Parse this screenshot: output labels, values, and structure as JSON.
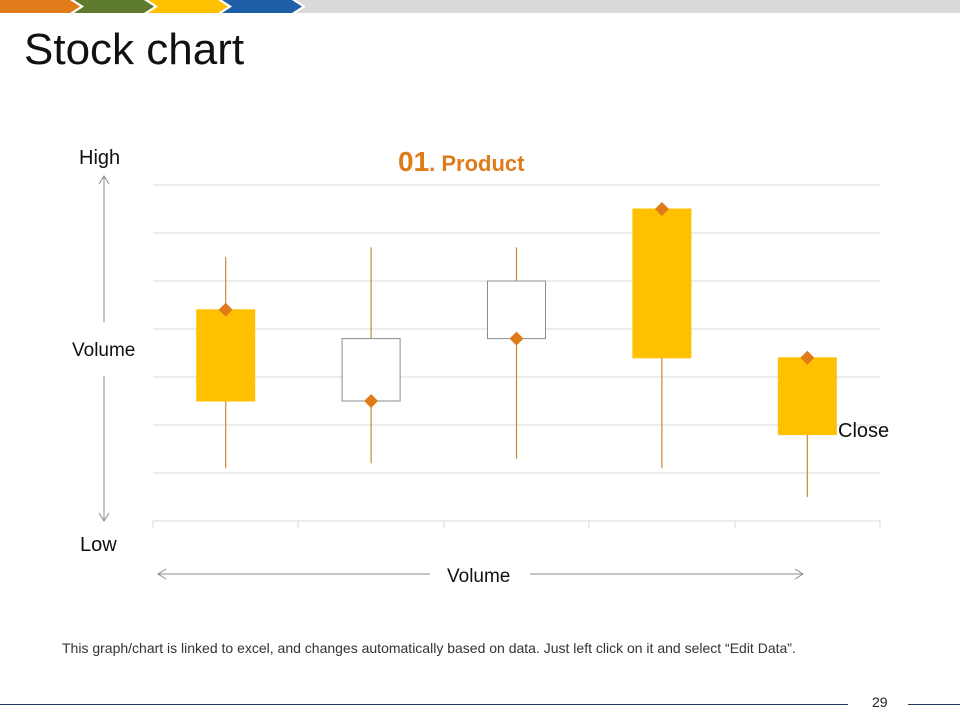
{
  "header": {
    "title": "Stock chart",
    "bar_colors": [
      "#e07b1a",
      "#5e7a2c",
      "#ffc000",
      "#1f5fa8",
      "#d9d9d9"
    ]
  },
  "labels": {
    "high": "High",
    "low": "Low",
    "volume_vertical": "Volume",
    "volume_horizontal": "Volume",
    "close": "Close"
  },
  "chart_title": {
    "number": "01",
    "text": ". Product"
  },
  "footnote": "This graph/chart is linked to excel, and changes automatically based on data. Just left click on it and select “Edit Data”.",
  "page_number": "29",
  "colors": {
    "accent": "#e07b1a",
    "up_fill": "#ffc000",
    "down_fill": "#ffffff",
    "wick": "#c9883a",
    "grid": "#d9d9d9",
    "arrow": "#8c8c8c"
  },
  "chart_data": {
    "type": "candlestick",
    "title": "01. Product",
    "ylim": [
      0,
      70
    ],
    "gridlines": [
      0,
      10,
      20,
      30,
      40,
      50,
      60,
      70
    ],
    "points": [
      {
        "open": 25,
        "high": 55,
        "low": 11,
        "close": 44
      },
      {
        "open": 38,
        "high": 57,
        "low": 12,
        "close": 25
      },
      {
        "open": 50,
        "high": 57,
        "low": 13,
        "close": 38
      },
      {
        "open": 34,
        "high": 65,
        "low": 11,
        "close": 65
      },
      {
        "open": 18,
        "high": 35,
        "low": 5,
        "close": 34
      }
    ]
  }
}
